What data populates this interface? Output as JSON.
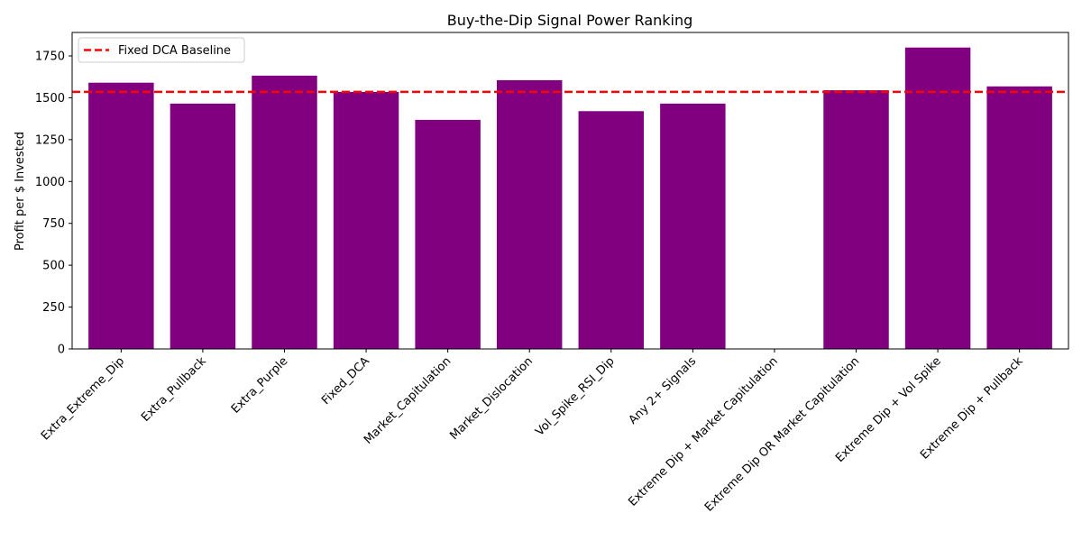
{
  "chart_data": {
    "type": "bar",
    "title": "Buy-the-Dip Signal Power Ranking",
    "xlabel": "",
    "ylabel": "Profit per $ Invested",
    "categories": [
      "Extra_Extreme_Dip",
      "Extra_Pullback",
      "Extra_Purple",
      "Fixed_DCA",
      "Market_Capitulation",
      "Market_Dislocation",
      "Vol_Spike_RSI_Dip",
      "Any 2+ Signals",
      "Extreme Dip + Market Capitulation",
      "Extreme Dip OR Market Capitulation",
      "Extreme Dip + Vol Spike",
      "Extreme Dip + Pullback"
    ],
    "values": [
      1590,
      1465,
      1632,
      1535,
      1368,
      1605,
      1420,
      1465,
      0,
      1545,
      1800,
      1568
    ],
    "bar_color": "#800080",
    "ylim": [
      0,
      1890
    ],
    "yticks": [
      0,
      250,
      500,
      750,
      1000,
      1250,
      1500,
      1750
    ],
    "baseline": {
      "label": "Fixed DCA Baseline",
      "value": 1535,
      "color": "#ff0000",
      "style": "dashed"
    },
    "legend_position": "top-left",
    "grid": false
  }
}
